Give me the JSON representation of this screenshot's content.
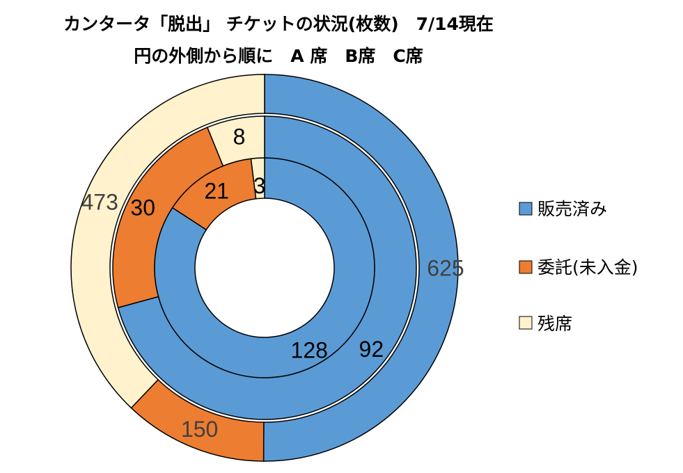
{
  "colors": {
    "sold": "#5B9BD5",
    "consigned": "#ED7D31",
    "remaining": "#FFF2CC",
    "stroke": "#000000"
  },
  "chart_data": {
    "type": "doughnut",
    "title_line1": "カンタータ「脱出」 チケットの状況(枚数)　7/14現在",
    "title_line2": "円の外側から順に　A 席　B席　C席",
    "categories": [
      "販売済み",
      "委託(未入金)",
      "残席"
    ],
    "rings": [
      {
        "name": "A 席",
        "values": [
          625,
          150,
          473
        ]
      },
      {
        "name": "B席",
        "values": [
          92,
          30,
          8
        ]
      },
      {
        "name": "C席",
        "values": [
          128,
          21,
          3
        ]
      }
    ],
    "legend_position": "right"
  }
}
